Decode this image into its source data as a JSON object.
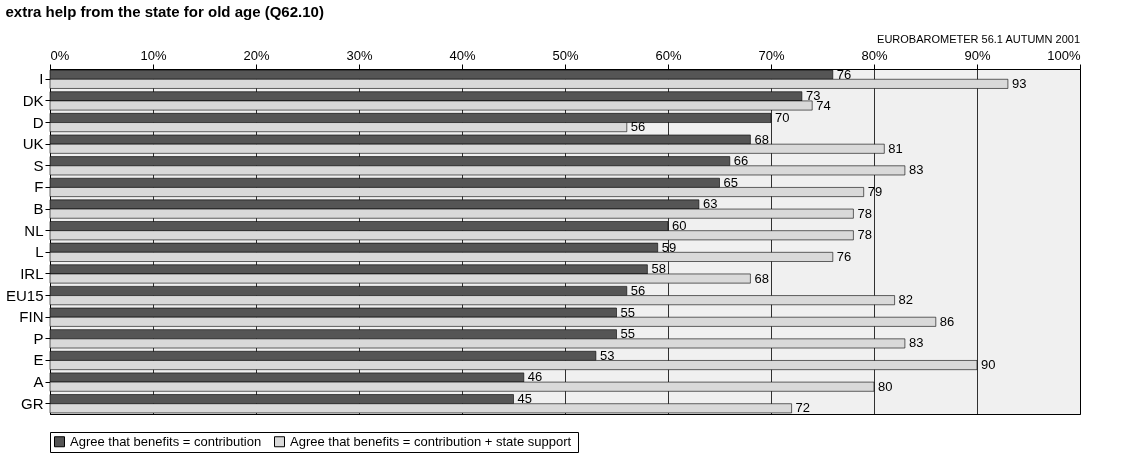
{
  "chart_data": {
    "type": "bar",
    "orientation": "horizontal",
    "title": "extra help from the state for old age (Q62.10)",
    "annotations": [
      "EUROBAROMETER 56.1  AUTUMN 2001"
    ],
    "categories": [
      "I",
      "DK",
      "D",
      "UK",
      "S",
      "F",
      "B",
      "NL",
      "L",
      "IRL",
      "EU15",
      "FIN",
      "P",
      "E",
      "A",
      "GR"
    ],
    "series": [
      {
        "name": "Agree that benefits = contribution",
        "color": "#555555",
        "values": [
          76,
          73,
          70,
          68,
          66,
          65,
          63,
          60,
          59,
          58,
          56,
          55,
          55,
          53,
          46,
          45
        ]
      },
      {
        "name": "Agree that benefits =  contribution + state support",
        "color": "#d9d9d9",
        "values": [
          93,
          74,
          56,
          81,
          83,
          79,
          78,
          78,
          76,
          68,
          82,
          86,
          83,
          90,
          80,
          72
        ]
      }
    ],
    "xlim": [
      0,
      100
    ],
    "xticks": [
      {
        "value": 0,
        "label": "0%"
      },
      {
        "value": 10,
        "label": "10%"
      },
      {
        "value": 20,
        "label": "20%"
      },
      {
        "value": 30,
        "label": "30%"
      },
      {
        "value": 40,
        "label": "40%"
      },
      {
        "value": 50,
        "label": "50%"
      },
      {
        "value": 60,
        "label": "60%"
      },
      {
        "value": 70,
        "label": "70%"
      },
      {
        "value": 80,
        "label": "80%"
      },
      {
        "value": 90,
        "label": "90%"
      },
      {
        "value": 100,
        "label": "100%"
      }
    ],
    "grid": "x",
    "legend": "bottom",
    "data_labels": true
  }
}
